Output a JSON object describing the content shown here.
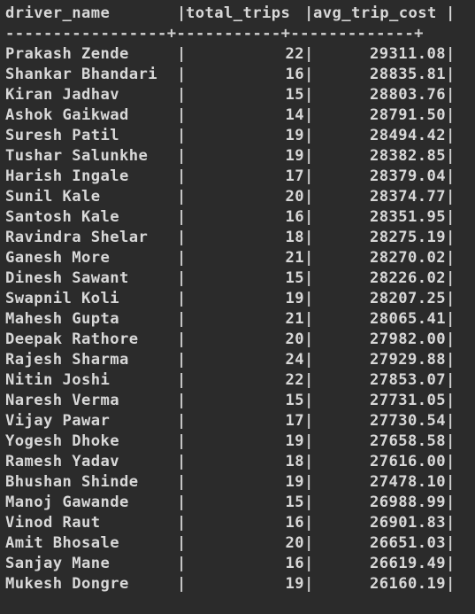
{
  "columns": {
    "name": "driver_name",
    "trips": "total_trips",
    "cost": "avg_trip_cost"
  },
  "separator": "-----------------+-----------+-------------+",
  "rows": [
    {
      "name": "Prakash Zende",
      "trips": "22",
      "cost": "29311.08"
    },
    {
      "name": "Shankar Bhandari",
      "trips": "16",
      "cost": "28835.81"
    },
    {
      "name": "Kiran Jadhav",
      "trips": "15",
      "cost": "28803.76"
    },
    {
      "name": "Ashok Gaikwad",
      "trips": "14",
      "cost": "28791.50"
    },
    {
      "name": "Suresh Patil",
      "trips": "19",
      "cost": "28494.42"
    },
    {
      "name": "Tushar Salunkhe",
      "trips": "19",
      "cost": "28382.85"
    },
    {
      "name": "Harish Ingale",
      "trips": "17",
      "cost": "28379.04"
    },
    {
      "name": "Sunil Kale",
      "trips": "20",
      "cost": "28374.77"
    },
    {
      "name": "Santosh Kale",
      "trips": "16",
      "cost": "28351.95"
    },
    {
      "name": "Ravindra Shelar",
      "trips": "18",
      "cost": "28275.19"
    },
    {
      "name": "Ganesh More",
      "trips": "21",
      "cost": "28270.02"
    },
    {
      "name": "Dinesh Sawant",
      "trips": "15",
      "cost": "28226.02"
    },
    {
      "name": "Swapnil Koli",
      "trips": "19",
      "cost": "28207.25"
    },
    {
      "name": "Mahesh Gupta",
      "trips": "21",
      "cost": "28065.41"
    },
    {
      "name": "Deepak Rathore",
      "trips": "20",
      "cost": "27982.00"
    },
    {
      "name": "Rajesh Sharma",
      "trips": "24",
      "cost": "27929.88"
    },
    {
      "name": "Nitin Joshi",
      "trips": "22",
      "cost": "27853.07"
    },
    {
      "name": "Naresh Verma",
      "trips": "15",
      "cost": "27731.05"
    },
    {
      "name": "Vijay Pawar",
      "trips": "17",
      "cost": "27730.54"
    },
    {
      "name": "Yogesh Dhoke",
      "trips": "19",
      "cost": "27658.58"
    },
    {
      "name": "Ramesh Yadav",
      "trips": "18",
      "cost": "27616.00"
    },
    {
      "name": "Bhushan Shinde",
      "trips": "19",
      "cost": "27478.10"
    },
    {
      "name": "Manoj Gawande",
      "trips": "15",
      "cost": "26988.99"
    },
    {
      "name": "Vinod Raut",
      "trips": "16",
      "cost": "26901.83"
    },
    {
      "name": "Amit Bhosale",
      "trips": "20",
      "cost": "26651.03"
    },
    {
      "name": "Sanjay Mane",
      "trips": "16",
      "cost": "26619.49"
    },
    {
      "name": "Mukesh Dongre",
      "trips": "19",
      "cost": "26160.19"
    }
  ],
  "colors": {
    "background": "#2b2b2b",
    "text": "#d8d8d8"
  }
}
